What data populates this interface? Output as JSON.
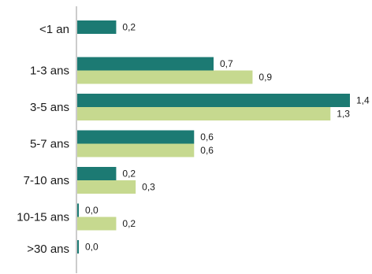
{
  "chart_data": {
    "type": "bar",
    "orientation": "horizontal",
    "categories": [
      "<1 an",
      "1-3 ans",
      "3-5 ans",
      "5-7 ans",
      "7-10 ans",
      "10-15 ans",
      ">30 ans"
    ],
    "series": [
      {
        "color": "#1c7a73",
        "values": [
          0.2,
          0.7,
          1.4,
          0.6,
          0.2,
          0.0,
          0.0
        ],
        "labels": [
          "0,2",
          "0,7",
          "1,4",
          "0,6",
          "0,2",
          "0,0",
          "0,0"
        ]
      },
      {
        "color": "#c6d98f",
        "values": [
          null,
          0.9,
          1.3,
          0.6,
          0.3,
          0.2,
          null
        ],
        "labels": [
          null,
          "0,9",
          "1,3",
          "0,6",
          "0,3",
          "0,2",
          null
        ]
      }
    ],
    "xlim": [
      0,
      1.4
    ],
    "grid": false,
    "legend": "none"
  }
}
